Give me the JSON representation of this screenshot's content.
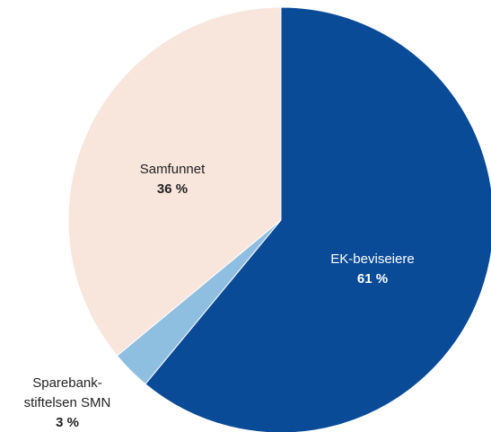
{
  "chart_data": {
    "type": "pie",
    "categories": [
      "EK-beviseiere",
      "Sparebank-stiftelsen SMN",
      "Samfunnet"
    ],
    "values": [
      61,
      3,
      36
    ],
    "value_labels": [
      "61 %",
      "3 %",
      "36 %"
    ],
    "colors": [
      "#0a4b98",
      "#8fbfe0",
      "#f8e6dc"
    ]
  }
}
